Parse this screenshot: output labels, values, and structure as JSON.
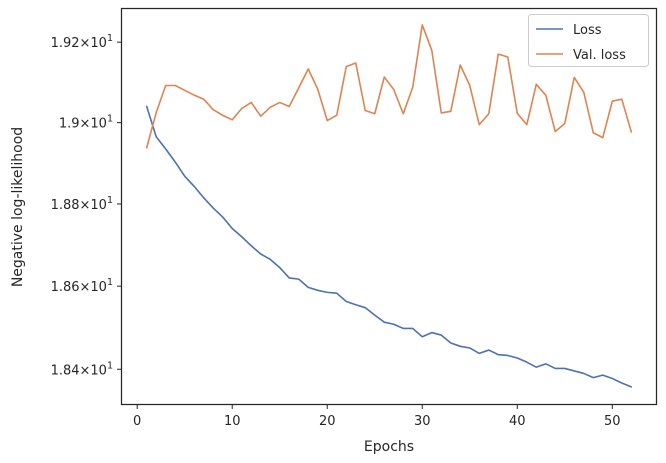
{
  "chart_data": {
    "type": "line",
    "xlabel": "Epochs",
    "ylabel": "Negative log-likelihood",
    "xlim": [
      -1.6,
      54.6
    ],
    "ylim": [
      18.317,
      19.283
    ],
    "y_scale": "log",
    "x_ticks": [
      {
        "value": 0,
        "label": "0"
      },
      {
        "value": 10,
        "label": "10"
      },
      {
        "value": 20,
        "label": "20"
      },
      {
        "value": 30,
        "label": "30"
      },
      {
        "value": 40,
        "label": "40"
      },
      {
        "value": 50,
        "label": "50"
      }
    ],
    "y_ticks": [
      {
        "value": 18.4,
        "mant": "1.84",
        "exp": "1"
      },
      {
        "value": 18.6,
        "mant": "1.86",
        "exp": "1"
      },
      {
        "value": 18.8,
        "mant": "1.88",
        "exp": "1"
      },
      {
        "value": 19.0,
        "mant": "1.9",
        "exp": "1"
      },
      {
        "value": 19.2,
        "mant": "1.92",
        "exp": "1"
      }
    ],
    "legend_position": "top-right",
    "grid": false,
    "series": [
      {
        "name": "Loss",
        "color": "#4c72b0",
        "x": [
          1,
          2,
          3,
          4,
          5,
          6,
          7,
          8,
          9,
          10,
          11,
          12,
          13,
          14,
          15,
          16,
          17,
          18,
          19,
          20,
          21,
          22,
          23,
          24,
          25,
          26,
          27,
          28,
          29,
          30,
          31,
          32,
          33,
          34,
          35,
          36,
          37,
          38,
          39,
          40,
          41,
          42,
          43,
          44,
          45,
          46,
          47,
          48,
          49,
          50,
          51,
          52
        ],
        "values": [
          19.04,
          18.965,
          18.935,
          18.903,
          18.868,
          18.843,
          18.815,
          18.79,
          18.768,
          18.74,
          18.72,
          18.698,
          18.678,
          18.665,
          18.645,
          18.62,
          18.617,
          18.597,
          18.59,
          18.585,
          18.583,
          18.563,
          18.555,
          18.548,
          18.53,
          18.513,
          18.508,
          18.498,
          18.498,
          18.478,
          18.488,
          18.482,
          18.463,
          18.455,
          18.451,
          18.438,
          18.446,
          18.435,
          18.433,
          18.427,
          18.417,
          18.405,
          18.413,
          18.402,
          18.402,
          18.396,
          18.39,
          18.38,
          18.386,
          18.378,
          18.367,
          18.358
        ]
      },
      {
        "name": "Val. loss",
        "color": "#dd8452",
        "x": [
          1,
          2,
          3,
          4,
          5,
          6,
          7,
          8,
          9,
          10,
          11,
          12,
          13,
          14,
          15,
          16,
          17,
          18,
          19,
          20,
          21,
          22,
          23,
          24,
          25,
          26,
          27,
          28,
          29,
          30,
          31,
          32,
          33,
          34,
          35,
          36,
          37,
          38,
          39,
          40,
          41,
          42,
          43,
          44,
          45,
          46,
          47,
          48,
          49,
          50,
          51,
          52
        ],
        "values": [
          18.938,
          19.025,
          19.092,
          19.092,
          19.08,
          19.068,
          19.058,
          19.032,
          19.018,
          19.007,
          19.035,
          19.05,
          19.016,
          19.038,
          19.05,
          19.04,
          19.086,
          19.133,
          19.083,
          19.005,
          19.018,
          19.139,
          19.148,
          19.03,
          19.022,
          19.113,
          19.082,
          19.022,
          19.088,
          19.243,
          19.18,
          19.024,
          19.028,
          19.143,
          19.092,
          18.995,
          19.022,
          19.17,
          19.163,
          19.023,
          18.995,
          19.095,
          19.068,
          18.978,
          18.998,
          19.112,
          19.075,
          18.975,
          18.963,
          19.053,
          19.058,
          18.977
        ]
      }
    ]
  }
}
